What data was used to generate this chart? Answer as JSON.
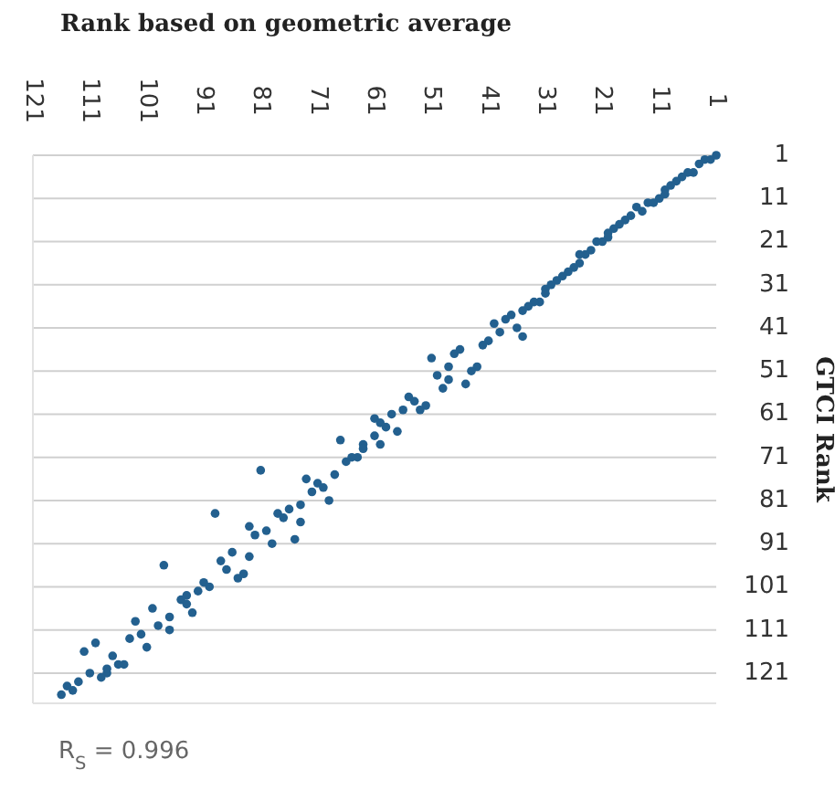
{
  "chart_data": {
    "type": "scatter",
    "title": "Rank based on geometric average",
    "ylabel": "GTCI Rank",
    "annotations": [
      "R$_{S}$ = 0.996"
    ],
    "xlim": [
      121,
      1
    ],
    "ylim": [
      128,
      1
    ],
    "xticks": [
      121,
      111,
      101,
      91,
      81,
      71,
      61,
      51,
      41,
      31,
      21,
      11,
      1
    ],
    "yticks": [
      1,
      11,
      21,
      31,
      41,
      51,
      61,
      71,
      81,
      91,
      101,
      111,
      121
    ],
    "grid": "y",
    "marker": "circle",
    "series": [
      {
        "color": "#23608f",
        "x": [
          1,
          2,
          3,
          4,
          5,
          6,
          7,
          8,
          9,
          10,
          10,
          11,
          12,
          13,
          14,
          15,
          16,
          17,
          18,
          19,
          20,
          20,
          21,
          22,
          23,
          24,
          25,
          25,
          26,
          27,
          28,
          29,
          30,
          31,
          31,
          32,
          33,
          34,
          35,
          37,
          38,
          40,
          39,
          36,
          35,
          41,
          42,
          46,
          47,
          51,
          48,
          50,
          48,
          49,
          43,
          44,
          45,
          52,
          55,
          56,
          58,
          61,
          53,
          54,
          59,
          60,
          57,
          61,
          60,
          63,
          63,
          67,
          64,
          65,
          66,
          68,
          81,
          73,
          71,
          70,
          72,
          69,
          74,
          78,
          76,
          77,
          74,
          89,
          83,
          82,
          80,
          79,
          75,
          83,
          86,
          88,
          87,
          85,
          84,
          98,
          91,
          90,
          92,
          94,
          95,
          94,
          93,
          100,
          103,
          97,
          99,
          97,
          102,
          104,
          101,
          110,
          112,
          105,
          106,
          107,
          108,
          108,
          109,
          111,
          113,
          114,
          115,
          116
        ],
        "values": [
          1,
          2,
          2,
          3,
          5,
          5,
          6,
          7,
          8,
          9,
          10,
          11,
          12,
          12,
          14,
          13,
          15,
          16,
          17,
          18,
          19,
          20,
          21,
          21,
          23,
          24,
          24,
          26,
          27,
          28,
          29,
          30,
          31,
          32,
          33,
          35,
          35,
          36,
          37,
          38,
          39,
          40,
          42,
          41,
          43,
          44,
          45,
          46,
          47,
          48,
          50,
          52,
          53,
          55,
          50,
          51,
          54,
          59,
          57,
          60,
          61,
          62,
          60,
          58,
          64,
          63,
          65,
          66,
          68,
          68,
          69,
          67,
          71,
          71,
          72,
          75,
          74,
          76,
          77,
          78,
          79,
          81,
          82,
          84,
          83,
          85,
          86,
          84,
          87,
          89,
          88,
          91,
          90,
          94,
          93,
          95,
          97,
          99,
          98,
          96,
          100,
          101,
          102,
          103,
          104,
          105,
          107,
          106,
          109,
          108,
          110,
          111,
          112,
          113,
          115,
          114,
          116,
          119,
          119,
          117,
          121,
          120,
          122,
          121,
          123,
          125,
          124,
          126
        ]
      }
    ]
  }
}
